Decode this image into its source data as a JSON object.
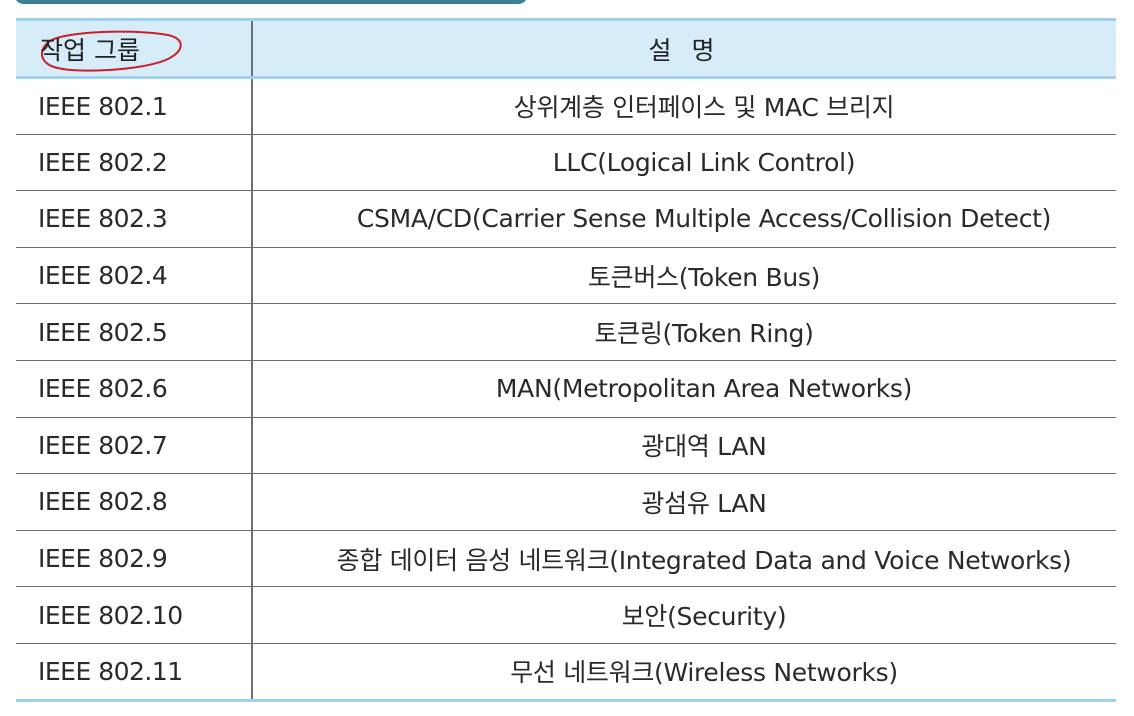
{
  "table": {
    "header": {
      "group": "작업 그룹",
      "description": "설 명"
    },
    "rows": [
      {
        "group": "IEEE 802.1",
        "description": "상위계층 인터페이스 및 MAC 브리지"
      },
      {
        "group": "IEEE 802.2",
        "description": "LLC(Logical Link Control)"
      },
      {
        "group": "IEEE 802.3",
        "description": "CSMA/CD(Carrier Sense Multiple Access/Collision Detect)"
      },
      {
        "group": "IEEE 802.4",
        "description": "토큰버스(Token Bus)"
      },
      {
        "group": "IEEE 802.5",
        "description": "토큰링(Token Ring)"
      },
      {
        "group": "IEEE 802.6",
        "description": "MAN(Metropolitan Area Networks)"
      },
      {
        "group": "IEEE 802.7",
        "description": "광대역 LAN"
      },
      {
        "group": "IEEE 802.8",
        "description": "광섬유 LAN"
      },
      {
        "group": "IEEE 802.9",
        "description": "종합 데이터 음성 네트워크(Integrated Data and Voice Networks)"
      },
      {
        "group": "IEEE 802.10",
        "description": "보안(Security)"
      },
      {
        "group": "IEEE 802.11",
        "description": "무선 네트워크(Wireless Networks)"
      }
    ]
  },
  "colors": {
    "header_bg": "#d6ecf8",
    "header_rule": "#9fd0ec",
    "banner": "#3d7f93",
    "annotation": "#c8202a"
  }
}
